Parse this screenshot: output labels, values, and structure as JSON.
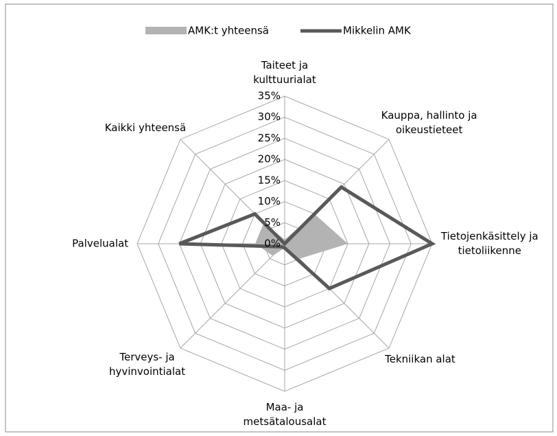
{
  "chart_data": {
    "type": "radar",
    "categories": [
      "Taiteet ja\nkulttuurialat",
      "Kauppa, hallinto ja\noikeustieteet",
      "Tietojenkäsittely ja\ntietoliikenne",
      "Tekniikan alat",
      "Maa- ja\nmetsätalousalat",
      "Terveys- ja\nhyvinvointialat",
      "Palvelualat",
      "Kaikki yhteensä"
    ],
    "series": [
      {
        "name": "AMK:t yhteensä",
        "color": "#b3b3b3",
        "fill": true,
        "values": [
          1,
          10,
          15,
          5,
          1,
          4,
          7,
          7
        ]
      },
      {
        "name": "Mikkelin AMK",
        "color": "#595959",
        "fill": false,
        "values": [
          0,
          19,
          35,
          15,
          1,
          1,
          25,
          10
        ]
      }
    ],
    "ylim": [
      0,
      35
    ],
    "yticks": [
      {
        "value": 0,
        "label": "0%"
      },
      {
        "value": 5,
        "label": "5%"
      },
      {
        "value": 10,
        "label": "10%"
      },
      {
        "value": 15,
        "label": "15%"
      },
      {
        "value": 20,
        "label": "20%"
      },
      {
        "value": 25,
        "label": "25%"
      },
      {
        "value": 30,
        "label": "30%"
      },
      {
        "value": 35,
        "label": "35%"
      }
    ],
    "grid": true,
    "legend": "top"
  }
}
